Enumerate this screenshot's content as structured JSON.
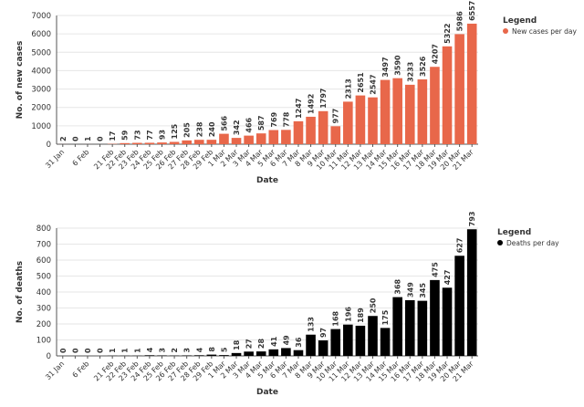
{
  "colors": {
    "cases_bar": "#e8674a",
    "deaths_bar": "#000000",
    "grid": "#e6e6e6",
    "axis": "#555555",
    "text": "#333333"
  },
  "chart_data": [
    {
      "id": "cases",
      "type": "bar",
      "ylabel": "No. of new cases",
      "xlabel": "Date",
      "ylim": [
        0,
        7000
      ],
      "yticks": [
        0,
        1000,
        2000,
        3000,
        4000,
        5000,
        6000,
        7000
      ],
      "grid": true,
      "legend": {
        "title": "Legend",
        "label": "New cases per day",
        "position": "top-right"
      },
      "categories": [
        "31 Jan",
        "",
        "6 Feb",
        "",
        "21 Feb",
        "22 Feb",
        "23 Feb",
        "24 Feb",
        "25 Feb",
        "26 Feb",
        "27 Feb",
        "28 Feb",
        "29 Feb",
        "1 Mar",
        "2 Mar",
        "3 Mar",
        "4 Mar",
        "5 Mar",
        "6 Mar",
        "7 Mar",
        "8 Mar",
        "9 Mar",
        "10 Mar",
        "11 Mar",
        "12 Mar",
        "13 Mar",
        "14 Mar",
        "15 Mar",
        "16 Mar",
        "17 Mar",
        "18 Mar",
        "19 Mar",
        "20 Mar",
        "21 Mar"
      ],
      "values": [
        2,
        0,
        1,
        0,
        17,
        59,
        73,
        77,
        93,
        125,
        205,
        238,
        240,
        566,
        342,
        466,
        587,
        769,
        778,
        1247,
        1492,
        1797,
        977,
        2313,
        2651,
        2547,
        3497,
        3590,
        3233,
        3526,
        4207,
        5322,
        5986,
        6557
      ]
    },
    {
      "id": "deaths",
      "type": "bar",
      "ylabel": "No. of deaths",
      "xlabel": "Date",
      "ylim": [
        0,
        800
      ],
      "yticks": [
        0,
        100,
        200,
        300,
        400,
        500,
        600,
        700,
        800
      ],
      "grid": true,
      "legend": {
        "title": "Legend",
        "label": "Deaths per day",
        "position": "top-right"
      },
      "categories": [
        "31 Jan",
        "",
        "6 Feb",
        "",
        "21 Feb",
        "22 Feb",
        "23 Feb",
        "24 Feb",
        "25 Feb",
        "26 Feb",
        "27 Feb",
        "28 Feb",
        "29 Feb",
        "1 Mar",
        "2 Mar",
        "3 Mar",
        "4 Mar",
        "5 Mar",
        "6 Mar",
        "7 Mar",
        "8 Mar",
        "9 Mar",
        "10 Mar",
        "11 Mar",
        "12 Mar",
        "13 Mar",
        "14 Mar",
        "15 Mar",
        "16 Mar",
        "17 Mar",
        "18 Mar",
        "19 Mar",
        "20 Mar",
        "21 Mar"
      ],
      "values": [
        0,
        0,
        0,
        0,
        1,
        1,
        1,
        4,
        3,
        2,
        3,
        4,
        8,
        5,
        18,
        27,
        28,
        41,
        49,
        36,
        133,
        97,
        168,
        196,
        189,
        250,
        175,
        368,
        349,
        345,
        475,
        427,
        627,
        793
      ]
    }
  ]
}
